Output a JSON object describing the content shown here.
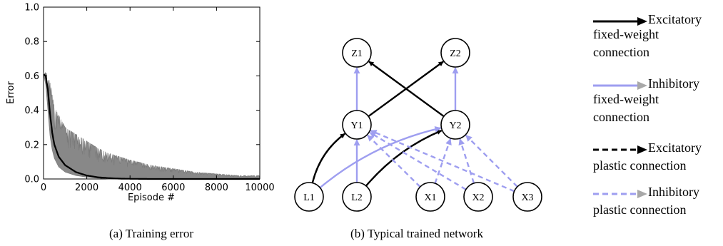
{
  "panel_a": {
    "caption": "(a) Training error",
    "chart_data": {
      "type": "line",
      "title": "",
      "xlabel": "Episode #",
      "ylabel": "Error",
      "xlim": [
        0,
        10000
      ],
      "ylim": [
        0,
        1.0
      ],
      "x_ticks": [
        "0",
        "2000",
        "4000",
        "6000",
        "8000",
        "10000"
      ],
      "y_ticks": [
        "0.0",
        "0.2",
        "0.4",
        "0.6",
        "0.8",
        "1.0"
      ],
      "grid": false,
      "series": [
        {
          "role": "mean",
          "color": "#000000",
          "x": [
            0,
            100,
            200,
            300,
            400,
            500,
            700,
            1000,
            1500,
            2000,
            2500,
            3000,
            3500,
            4000,
            5000,
            6000,
            8000,
            10000
          ],
          "y": [
            0.61,
            0.6,
            0.52,
            0.38,
            0.27,
            0.2,
            0.13,
            0.08,
            0.04,
            0.02,
            0.01,
            0.005,
            0.002,
            0.001,
            0.0,
            0.0,
            0.0,
            0.0
          ]
        },
        {
          "role": "upper-band",
          "color": "#888888",
          "x": [
            0,
            100,
            200,
            300,
            400,
            500,
            700,
            1000,
            1500,
            2000,
            2500,
            3000,
            3500,
            4000,
            5000,
            6000,
            7000,
            8000,
            9000,
            10000
          ],
          "y": [
            0.62,
            0.62,
            0.6,
            0.56,
            0.49,
            0.42,
            0.37,
            0.3,
            0.26,
            0.22,
            0.18,
            0.15,
            0.13,
            0.11,
            0.08,
            0.06,
            0.04,
            0.03,
            0.02,
            0.02
          ]
        },
        {
          "role": "lower-band",
          "color": "#888888",
          "x": [
            0,
            100,
            200,
            300,
            400,
            500,
            700,
            1000,
            1500,
            2000,
            3000,
            10000
          ],
          "y": [
            0.61,
            0.55,
            0.4,
            0.25,
            0.17,
            0.12,
            0.07,
            0.04,
            0.02,
            0.01,
            0.0,
            0.0
          ]
        }
      ]
    }
  },
  "panel_b": {
    "caption": "(b) Typical trained network",
    "nodes": [
      {
        "id": "Z1",
        "label": "Z1"
      },
      {
        "id": "Z2",
        "label": "Z2"
      },
      {
        "id": "Y1",
        "label": "Y1"
      },
      {
        "id": "Y2",
        "label": "Y2"
      },
      {
        "id": "L1",
        "label": "L1"
      },
      {
        "id": "L2",
        "label": "L2"
      },
      {
        "id": "X1",
        "label": "X1"
      },
      {
        "id": "X2",
        "label": "X2"
      },
      {
        "id": "X3",
        "label": "X3"
      }
    ],
    "edges": [
      {
        "from": "Y1",
        "to": "Z1",
        "type": "inhibitory-fixed"
      },
      {
        "from": "Y2",
        "to": "Z2",
        "type": "inhibitory-fixed"
      },
      {
        "from": "Y1",
        "to": "Z2",
        "type": "excitatory-fixed"
      },
      {
        "from": "Y2",
        "to": "Z1",
        "type": "excitatory-fixed"
      },
      {
        "from": "L1",
        "to": "Y1",
        "type": "excitatory-fixed"
      },
      {
        "from": "L2",
        "to": "Y2",
        "type": "excitatory-fixed"
      },
      {
        "from": "L2",
        "to": "Y1",
        "type": "inhibitory-fixed"
      },
      {
        "from": "L1",
        "to": "Y2",
        "type": "inhibitory-fixed"
      },
      {
        "from": "X1",
        "to": "Y1",
        "type": "inhibitory-plastic"
      },
      {
        "from": "X2",
        "to": "Y1",
        "type": "inhibitory-plastic"
      },
      {
        "from": "X3",
        "to": "Y1",
        "type": "inhibitory-plastic"
      },
      {
        "from": "X1",
        "to": "Y2",
        "type": "inhibitory-plastic"
      },
      {
        "from": "X2",
        "to": "Y2",
        "type": "inhibitory-plastic"
      },
      {
        "from": "X3",
        "to": "Y2",
        "type": "inhibitory-plastic"
      }
    ],
    "colors": {
      "excitatory": "#000000",
      "inhibitory": "#9e9ef0",
      "arrowhead_gray": "#a8a8a8"
    }
  },
  "legend": [
    {
      "type": "excitatory-fixed",
      "line1": "Excitatory",
      "line2": "fixed-weight",
      "line3": "connection"
    },
    {
      "type": "inhibitory-fixed",
      "line1": "Inhibitory",
      "line2": "fixed-weight",
      "line3": "connection"
    },
    {
      "type": "excitatory-plastic",
      "line1": "Excitatory",
      "line2": "plastic connection"
    },
    {
      "type": "inhibitory-plastic",
      "line1": "Inhibitory",
      "line2": "plastic connection"
    }
  ]
}
